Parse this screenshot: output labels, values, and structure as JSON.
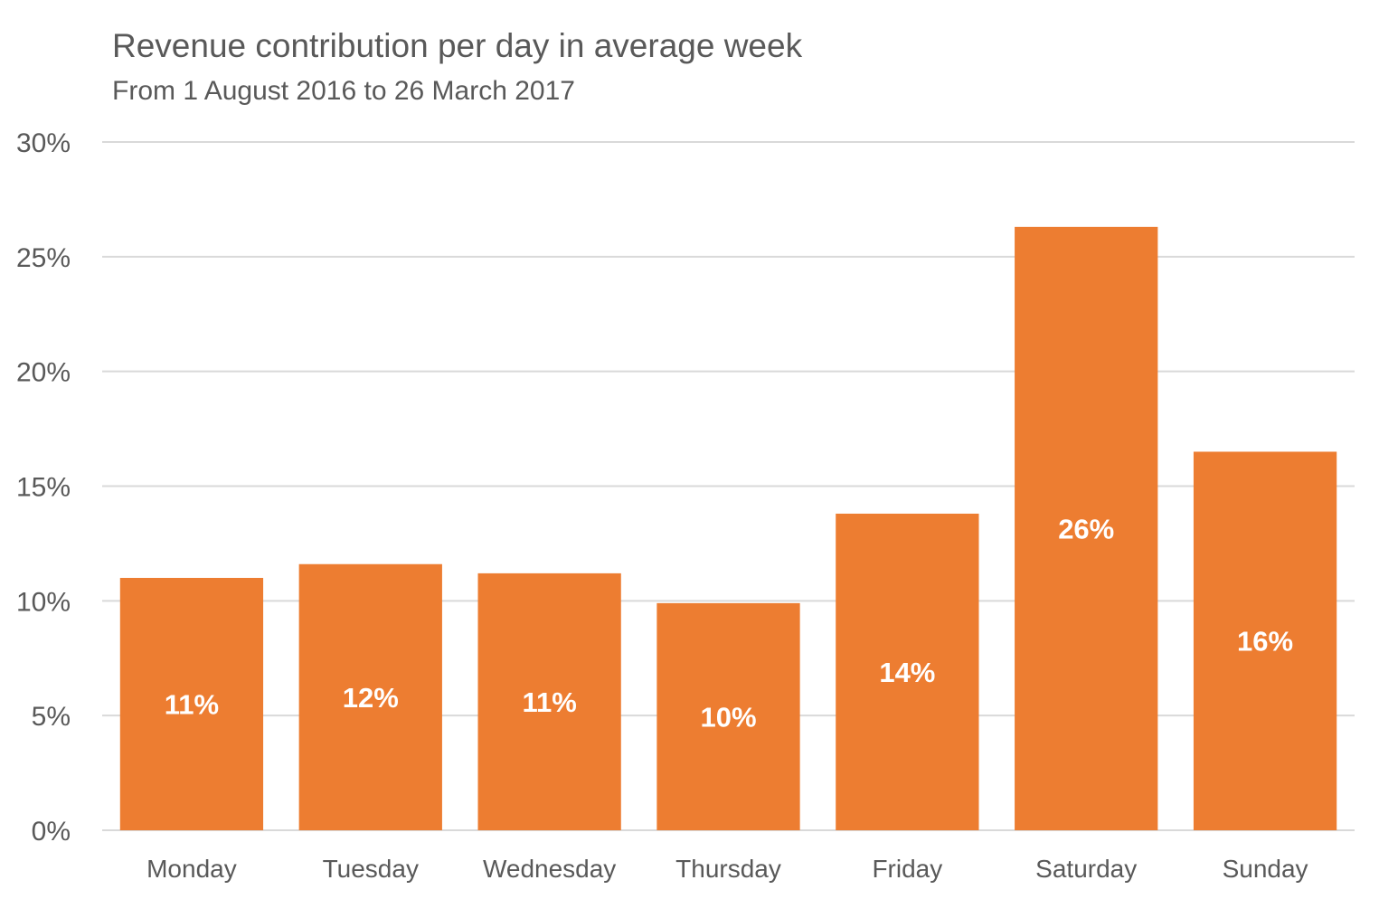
{
  "chart_data": {
    "type": "bar",
    "title": "Revenue contribution per day in average week",
    "subtitle": "From 1 August 2016 to 26 March 2017",
    "xlabel": "",
    "ylabel": "",
    "categories": [
      "Monday",
      "Tuesday",
      "Wednesday",
      "Thursday",
      "Friday",
      "Saturday",
      "Sunday"
    ],
    "values": [
      11.0,
      11.6,
      11.2,
      9.9,
      13.8,
      26.3,
      16.5
    ],
    "data_labels": [
      "11%",
      "12%",
      "11%",
      "10%",
      "14%",
      "26%",
      "16%"
    ],
    "ylim": [
      0,
      30
    ],
    "yticks": [
      0,
      5,
      10,
      15,
      20,
      25,
      30
    ],
    "ytick_labels": [
      "0%",
      "5%",
      "10%",
      "15%",
      "20%",
      "25%",
      "30%"
    ],
    "grid": true,
    "legend": "none",
    "colors": {
      "bar": "#ED7D31",
      "grid": "#D9D9D9",
      "text": "#595959",
      "bar_label": "#FFFFFF"
    }
  }
}
